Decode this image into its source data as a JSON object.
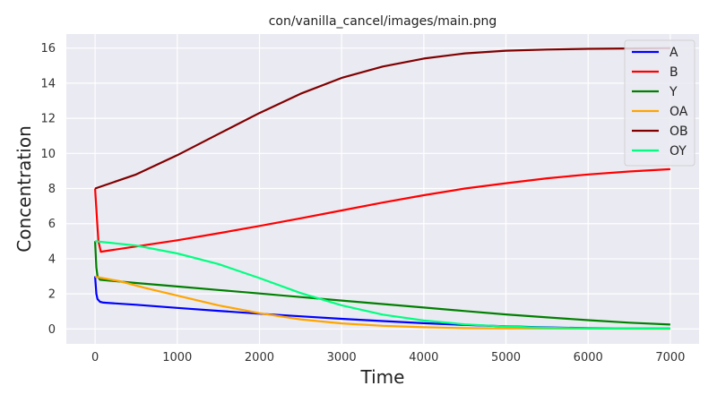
{
  "chart_data": {
    "type": "line",
    "title": "con/vanilla_cancel/images/main.png",
    "xlabel": "Time",
    "ylabel": "Concentration",
    "xlim": [
      -350,
      7350
    ],
    "ylim": [
      -0.85,
      16.8
    ],
    "xticks": [
      0,
      1000,
      2000,
      3000,
      4000,
      5000,
      6000,
      7000
    ],
    "yticks": [
      0,
      2,
      4,
      6,
      8,
      10,
      12,
      14,
      16
    ],
    "grid": true,
    "background": "#eaeaf2",
    "legend_position": "top-right",
    "series": [
      {
        "name": "A",
        "color": "#0000ff",
        "points": [
          [
            0,
            3.0
          ],
          [
            15,
            2.0
          ],
          [
            30,
            1.7
          ],
          [
            60,
            1.55
          ],
          [
            100,
            1.5
          ],
          [
            500,
            1.38
          ],
          [
            1000,
            1.2
          ],
          [
            1500,
            1.03
          ],
          [
            2000,
            0.87
          ],
          [
            2500,
            0.72
          ],
          [
            3000,
            0.58
          ],
          [
            3500,
            0.45
          ],
          [
            4000,
            0.33
          ],
          [
            4500,
            0.23
          ],
          [
            5000,
            0.15
          ],
          [
            5500,
            0.09
          ],
          [
            6000,
            0.05
          ],
          [
            6500,
            0.03
          ],
          [
            7000,
            0.02
          ]
        ]
      },
      {
        "name": "B",
        "color": "#ff0000",
        "points": [
          [
            0,
            8.0
          ],
          [
            20,
            6.5
          ],
          [
            40,
            5.0
          ],
          [
            70,
            4.4
          ],
          [
            500,
            4.7
          ],
          [
            1000,
            5.05
          ],
          [
            1500,
            5.45
          ],
          [
            2000,
            5.87
          ],
          [
            2500,
            6.3
          ],
          [
            3000,
            6.75
          ],
          [
            3500,
            7.2
          ],
          [
            4000,
            7.62
          ],
          [
            4500,
            8.0
          ],
          [
            5000,
            8.3
          ],
          [
            5500,
            8.58
          ],
          [
            6000,
            8.8
          ],
          [
            6500,
            8.97
          ],
          [
            7000,
            9.1
          ]
        ]
      },
      {
        "name": "Y",
        "color": "#008000",
        "points": [
          [
            0,
            5.0
          ],
          [
            15,
            3.5
          ],
          [
            30,
            3.0
          ],
          [
            60,
            2.8
          ],
          [
            500,
            2.62
          ],
          [
            1000,
            2.42
          ],
          [
            1500,
            2.22
          ],
          [
            2000,
            2.02
          ],
          [
            2500,
            1.82
          ],
          [
            3000,
            1.62
          ],
          [
            3500,
            1.42
          ],
          [
            4000,
            1.22
          ],
          [
            4500,
            1.02
          ],
          [
            5000,
            0.83
          ],
          [
            5500,
            0.66
          ],
          [
            6000,
            0.5
          ],
          [
            6500,
            0.36
          ],
          [
            7000,
            0.25
          ]
        ]
      },
      {
        "name": "OA",
        "color": "#ffa500",
        "points": [
          [
            0,
            2.98
          ],
          [
            300,
            2.72
          ],
          [
            600,
            2.35
          ],
          [
            1000,
            1.9
          ],
          [
            1500,
            1.35
          ],
          [
            2000,
            0.9
          ],
          [
            2500,
            0.55
          ],
          [
            3000,
            0.32
          ],
          [
            3500,
            0.18
          ],
          [
            4000,
            0.1
          ],
          [
            4500,
            0.05
          ],
          [
            5000,
            0.03
          ],
          [
            6000,
            0.02
          ],
          [
            7000,
            0.01
          ]
        ]
      },
      {
        "name": "OB",
        "color": "#800000",
        "points": [
          [
            0,
            8.0
          ],
          [
            500,
            8.8
          ],
          [
            1000,
            9.9
          ],
          [
            1500,
            11.1
          ],
          [
            2000,
            12.3
          ],
          [
            2500,
            13.4
          ],
          [
            3000,
            14.3
          ],
          [
            3500,
            14.95
          ],
          [
            4000,
            15.4
          ],
          [
            4500,
            15.7
          ],
          [
            5000,
            15.85
          ],
          [
            5500,
            15.92
          ],
          [
            6000,
            15.96
          ],
          [
            6500,
            15.98
          ],
          [
            7000,
            16.0
          ]
        ]
      },
      {
        "name": "OY",
        "color": "#00ff7f",
        "points": [
          [
            0,
            5.0
          ],
          [
            100,
            4.95
          ],
          [
            500,
            4.75
          ],
          [
            1000,
            4.3
          ],
          [
            1500,
            3.7
          ],
          [
            2000,
            2.9
          ],
          [
            2500,
            2.05
          ],
          [
            3000,
            1.35
          ],
          [
            3500,
            0.82
          ],
          [
            4000,
            0.48
          ],
          [
            4500,
            0.26
          ],
          [
            5000,
            0.14
          ],
          [
            5500,
            0.07
          ],
          [
            6000,
            0.04
          ],
          [
            7000,
            0.02
          ]
        ]
      }
    ]
  }
}
